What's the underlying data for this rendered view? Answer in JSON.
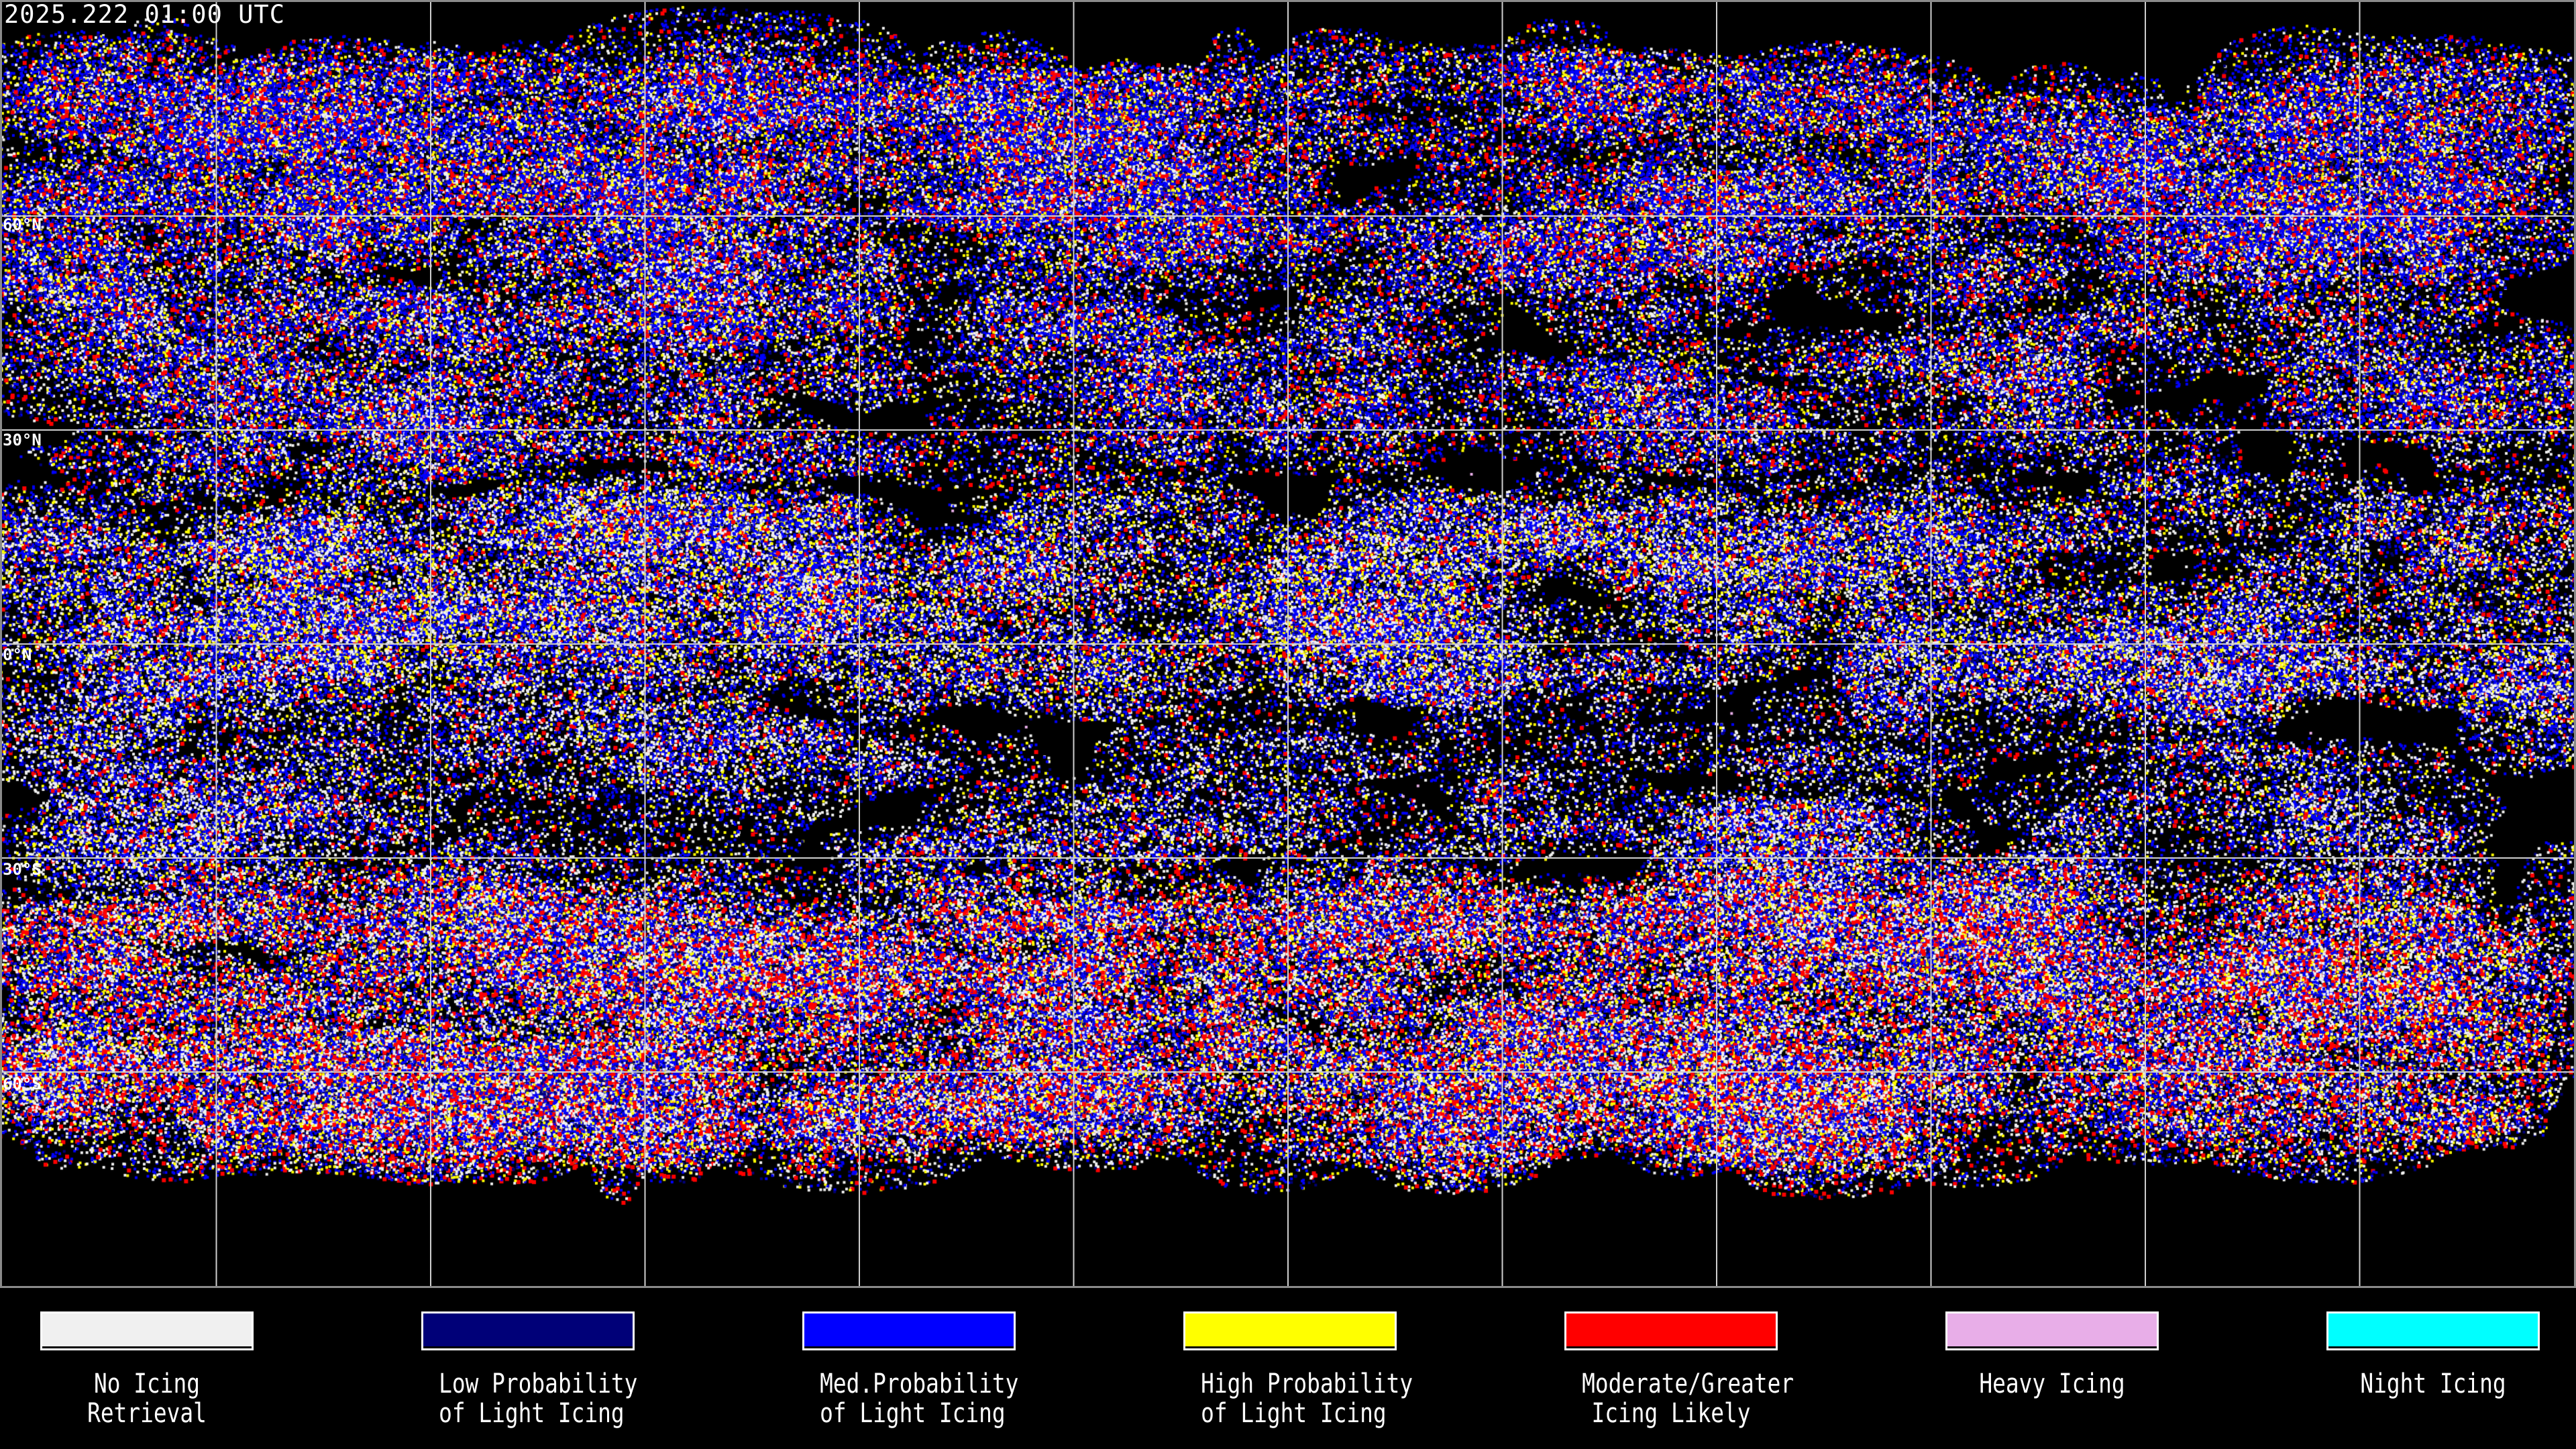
{
  "title": "2025.222 01:00 UTC",
  "latitude_labels": [
    "60°N",
    "30°N",
    "0°N",
    "30°S",
    "60°S"
  ],
  "map": {
    "projection": "equirectangular",
    "graticule_spacing_degrees": 30,
    "background": "#000000",
    "coastline_color": "#ffffff"
  },
  "legend": [
    {
      "line1": "No Icing",
      "line2": "Retrieval",
      "color": "#f0f0f0"
    },
    {
      "line1": "Low Probability",
      "line2": "of Light Icing",
      "color": "#000078"
    },
    {
      "line1": "Med.Probability",
      "line2": "of Light Icing",
      "color": "#0000ff"
    },
    {
      "line1": "High Probability",
      "line2": "of Light Icing",
      "color": "#ffff00"
    },
    {
      "line1": "Moderate/Greater",
      "line2": "Icing Likely",
      "color": "#ff0000"
    },
    {
      "line1": "Heavy Icing",
      "line2": "",
      "color": "#e8aee8"
    },
    {
      "line1": "Night Icing",
      "line2": "",
      "color": "#00ffff"
    }
  ]
}
